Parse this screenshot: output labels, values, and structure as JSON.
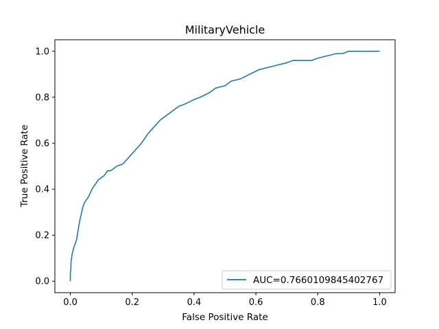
{
  "chart_data": {
    "type": "line",
    "title": "MilitaryVehicle",
    "xlabel": "False Positive Rate",
    "ylabel": "True Positive Rate",
    "xlim": [
      -0.05,
      1.05
    ],
    "ylim": [
      -0.05,
      1.05
    ],
    "xticks": [
      0.0,
      0.2,
      0.4,
      0.6,
      0.8,
      1.0
    ],
    "xtick_labels": [
      "0.0",
      "0.2",
      "0.4",
      "0.6",
      "0.8",
      "1.0"
    ],
    "yticks": [
      0.0,
      0.2,
      0.4,
      0.6,
      0.8,
      1.0
    ],
    "ytick_labels": [
      "0.0",
      "0.2",
      "0.4",
      "0.6",
      "0.8",
      "1.0"
    ],
    "grid": false,
    "legend_position": "lower right",
    "colors": {
      "line": "#1f77b4"
    },
    "series": [
      {
        "name": "AUC=0.7660109845402767",
        "x": [
          0.0,
          0.0,
          0.002,
          0.002,
          0.004,
          0.006,
          0.008,
          0.01,
          0.012,
          0.015,
          0.02,
          0.025,
          0.03,
          0.035,
          0.04,
          0.045,
          0.05,
          0.06,
          0.07,
          0.08,
          0.09,
          0.1,
          0.11,
          0.12,
          0.13,
          0.14,
          0.15,
          0.17,
          0.19,
          0.21,
          0.23,
          0.25,
          0.27,
          0.29,
          0.31,
          0.33,
          0.35,
          0.37,
          0.4,
          0.42,
          0.45,
          0.47,
          0.5,
          0.52,
          0.55,
          0.58,
          0.61,
          0.64,
          0.67,
          0.7,
          0.72,
          0.74,
          0.76,
          0.78,
          0.8,
          0.83,
          0.86,
          0.88,
          0.9,
          0.92,
          0.95,
          1.0
        ],
        "y": [
          0.0,
          0.03,
          0.06,
          0.08,
          0.1,
          0.12,
          0.13,
          0.14,
          0.15,
          0.16,
          0.18,
          0.22,
          0.26,
          0.29,
          0.32,
          0.34,
          0.35,
          0.37,
          0.4,
          0.42,
          0.44,
          0.45,
          0.46,
          0.48,
          0.48,
          0.49,
          0.5,
          0.51,
          0.54,
          0.57,
          0.6,
          0.64,
          0.67,
          0.7,
          0.72,
          0.74,
          0.76,
          0.77,
          0.79,
          0.8,
          0.82,
          0.84,
          0.85,
          0.87,
          0.88,
          0.9,
          0.92,
          0.93,
          0.94,
          0.95,
          0.96,
          0.96,
          0.96,
          0.96,
          0.97,
          0.98,
          0.99,
          0.99,
          1.0,
          1.0,
          1.0,
          1.0
        ]
      }
    ]
  }
}
